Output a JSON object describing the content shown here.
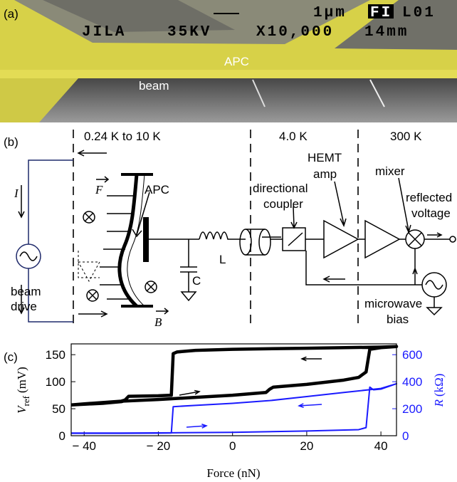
{
  "panel_a": {
    "label": "(a)",
    "scale": "1µm",
    "badge": "FI",
    "code": "L01",
    "lab": "JILA",
    "voltage": "35KV",
    "magnification": "X10,000",
    "distance": "14mm",
    "apc": "APC",
    "beam": "beam"
  },
  "panel_b": {
    "label": "(b)",
    "zone_cold": "0.24 K to 10 K",
    "zone_mid": "4.0 K",
    "zone_room": "300 K",
    "current": "I",
    "force": "F",
    "field": "B",
    "apc": "APC",
    "drive_1": "beam",
    "drive_2": "drive",
    "capacitor": "C",
    "inductor": "L",
    "coupler_1": "directional",
    "coupler_2": "coupler",
    "amp_1": "HEMT",
    "amp_2": "amp",
    "mixer": "mixer",
    "output_1": "reflected",
    "output_2": "voltage",
    "bias_1": "microwave",
    "bias_2": "bias"
  },
  "chart_data": {
    "type": "line",
    "panel_label": "(c)",
    "xlabel": "Force (nN)",
    "ylabel": {
      "symbol": "V",
      "subscript": "ref",
      "unit": "(mV)"
    },
    "y2label": {
      "symbol": "R",
      "unit": "(kΩ)"
    },
    "xlim": [
      -43.5,
      44.2
    ],
    "ylim": [
      0,
      170
    ],
    "y2lim": [
      0,
      680
    ],
    "xticks": [
      {
        "value": -40,
        "label": "− 40"
      },
      {
        "value": -20,
        "label": "− 20"
      },
      0,
      20,
      40
    ],
    "yticks": [
      0,
      50,
      100,
      150
    ],
    "y2ticks": [
      0,
      200,
      400,
      600
    ],
    "y2color": "#1a1aff",
    "series": [
      {
        "color": "#000000",
        "axis": "y",
        "width": 4.5,
        "x": [
          -43.5,
          -35,
          -30,
          -29.5,
          -20,
          -10,
          0,
          9,
          10,
          11,
          20,
          30,
          34,
          36,
          37,
          40,
          44.2,
          40,
          20,
          0,
          -10,
          -15,
          -16,
          -16.5,
          -20,
          -28,
          -29,
          -30,
          -40,
          -43.5
        ],
        "values": [
          57,
          60,
          63,
          64,
          67,
          71,
          75,
          80,
          86,
          90,
          95,
          103,
          108,
          118,
          160,
          163,
          165,
          164,
          162,
          160,
          158,
          155,
          152,
          75,
          74,
          73,
          66,
          64,
          59,
          57
        ]
      },
      {
        "color": "#1a1aff",
        "axis": "y2",
        "width": 2,
        "x": [
          -43.5,
          -30,
          -16,
          0,
          20,
          34,
          36,
          37,
          38,
          40,
          44.2,
          40,
          30,
          20,
          10,
          0,
          -10,
          -16,
          -16.5,
          -30,
          -43.5
        ],
        "values": [
          20,
          20,
          22,
          25,
          35,
          45,
          60,
          360,
          340,
          345,
          385,
          350,
          320,
          290,
          260,
          240,
          225,
          215,
          20,
          18,
          18
        ]
      }
    ]
  }
}
